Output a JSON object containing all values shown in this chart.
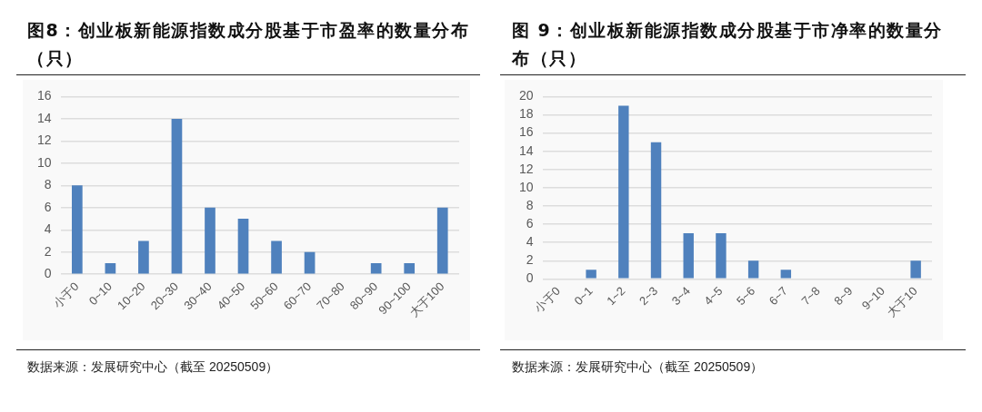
{
  "chart_data": [
    {
      "type": "bar",
      "title": "图8：创业板新能源指数成分股基于市盈率的数量分布（只）",
      "annotations": [
        "数据来源：发展研究中心（截至 20250509）"
      ],
      "categories": [
        "小于0",
        "0~10",
        "10~20",
        "20~30",
        "30~40",
        "40~50",
        "50~60",
        "60~70",
        "70~80",
        "80~90",
        "90~100",
        "大于100"
      ],
      "values": [
        8,
        1,
        3,
        14,
        6,
        5,
        3,
        2,
        0,
        1,
        1,
        6
      ],
      "color": "#4f81bd",
      "ylim": [
        0,
        16
      ],
      "yticks": [
        0,
        2,
        4,
        6,
        8,
        10,
        12,
        14,
        16
      ],
      "grid": "y"
    },
    {
      "type": "bar",
      "title": "图 9：创业板新能源指数成分股基于市净率的数量分布（只）",
      "annotations": [
        "数据来源：发展研究中心（截至 20250509）"
      ],
      "categories": [
        "小于0",
        "0~1",
        "1~2",
        "2~3",
        "3~4",
        "4~5",
        "5~6",
        "6~7",
        "7~8",
        "8~9",
        "9~10",
        "大于10"
      ],
      "values": [
        0,
        1,
        19,
        15,
        5,
        5,
        2,
        1,
        0,
        0,
        0,
        2
      ],
      "color": "#4f81bd",
      "ylim": [
        0,
        20
      ],
      "yticks": [
        0,
        2,
        4,
        6,
        8,
        10,
        12,
        14,
        16,
        18,
        20
      ],
      "grid": "y"
    }
  ]
}
